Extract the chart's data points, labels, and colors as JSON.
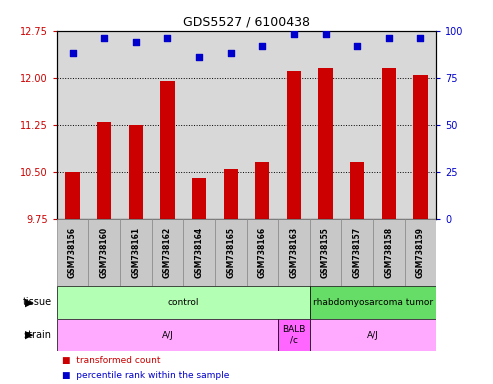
{
  "title": "GDS5527 / 6100438",
  "samples": [
    "GSM738156",
    "GSM738160",
    "GSM738161",
    "GSM738162",
    "GSM738164",
    "GSM738165",
    "GSM738166",
    "GSM738163",
    "GSM738155",
    "GSM738157",
    "GSM738158",
    "GSM738159"
  ],
  "bar_values": [
    10.5,
    11.3,
    11.25,
    11.95,
    10.4,
    10.55,
    10.65,
    12.1,
    12.15,
    10.65,
    12.15,
    12.05
  ],
  "dot_values": [
    88,
    96,
    94,
    96,
    86,
    88,
    92,
    98,
    98,
    92,
    96,
    96
  ],
  "bar_color": "#cc0000",
  "dot_color": "#0000cc",
  "ylim_left": [
    9.75,
    12.75
  ],
  "ylim_right": [
    0,
    100
  ],
  "yticks_left": [
    9.75,
    10.5,
    11.25,
    12.0,
    12.75
  ],
  "yticks_right": [
    0,
    25,
    50,
    75,
    100
  ],
  "tissue_labels": [
    {
      "text": "control",
      "start": 0,
      "end": 8,
      "color": "#b3ffb3"
    },
    {
      "text": "rhabdomyosarcoma tumor",
      "start": 8,
      "end": 12,
      "color": "#66dd66"
    }
  ],
  "strain_labels": [
    {
      "text": "A/J",
      "start": 0,
      "end": 7,
      "color": "#ffaaff"
    },
    {
      "text": "BALB\n/c",
      "start": 7,
      "end": 8,
      "color": "#ff66ff"
    },
    {
      "text": "A/J",
      "start": 8,
      "end": 12,
      "color": "#ffaaff"
    }
  ],
  "legend_items": [
    {
      "color": "#cc0000",
      "label": "transformed count"
    },
    {
      "color": "#0000cc",
      "label": "percentile rank within the sample"
    }
  ],
  "plot_bg_color": "#d8d8d8",
  "xlabel_bg_color": "#c8c8c8",
  "bar_bottom": 9.75,
  "grid_yticks": [
    10.5,
    11.25,
    12.0
  ]
}
